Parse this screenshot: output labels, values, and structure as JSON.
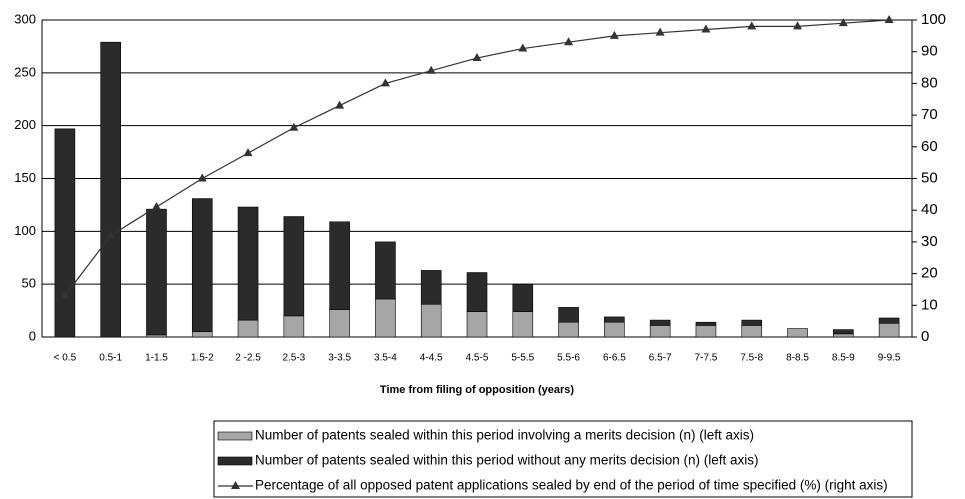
{
  "chart_data": {
    "type": "bar-line",
    "x_label": "Time from filing of opposition (years)",
    "categories": [
      "< 0.5",
      "0.5-1",
      "1-1.5",
      "1.5-2",
      "2 -2.5",
      "2.5-3",
      "3-3.5",
      "3.5-4",
      "4-4.5",
      "4.5-5",
      "5-5.5",
      "5.5-6",
      "6-6.5",
      "6.5-7",
      "7-7.5",
      "7.5-8",
      "8-8.5",
      "8.5-9",
      "9-9.5"
    ],
    "series": [
      {
        "name": "Number of patents sealed within this period involving a merits decision (n) (left axis)",
        "color": "#a6a6a6",
        "values": [
          0,
          0,
          2,
          5,
          16,
          20,
          26,
          36,
          31,
          24,
          24,
          14,
          14,
          11,
          11,
          11,
          8,
          3,
          13
        ]
      },
      {
        "name": "Number of patents sealed within this period without any merits decision (n) (left axis)",
        "color": "#2b2b2b",
        "values": [
          197,
          279,
          119,
          126,
          107,
          94,
          83,
          54,
          32,
          37,
          26,
          14,
          5,
          5,
          3,
          5,
          0,
          4,
          5
        ]
      },
      {
        "name": "Percentage of all opposed patent applications sealed by end of the period of time specified (%) (right axis)",
        "color": "#333333",
        "axis": "y2",
        "values": [
          13,
          32,
          41,
          50,
          58,
          66,
          73,
          80,
          84,
          88,
          91,
          93,
          95,
          96,
          97,
          98,
          98,
          99,
          100
        ]
      }
    ],
    "ylim": [
      0,
      300
    ],
    "yticks": [
      0,
      50,
      100,
      150,
      200,
      250,
      300
    ],
    "y2lim": [
      0,
      100
    ],
    "y2ticks": [
      0,
      10,
      20,
      30,
      40,
      50,
      60,
      70,
      80,
      90,
      100
    ],
    "grid": true
  }
}
